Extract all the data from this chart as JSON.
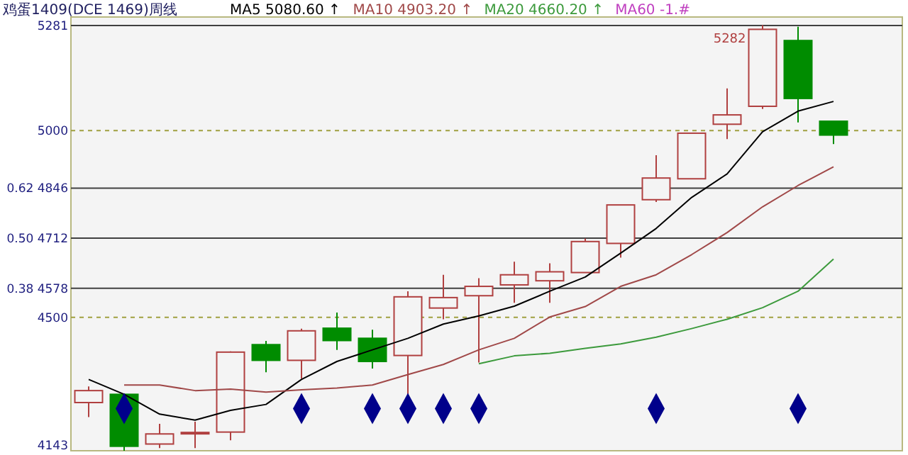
{
  "chart_data": {
    "type": "candlestick",
    "title": "鸡蛋1409(DCE 1469)周线",
    "categories": [
      null,
      null,
      null,
      null,
      null,
      null,
      null,
      null,
      null,
      null,
      null,
      null,
      null,
      null,
      null,
      null,
      null,
      null,
      null,
      null,
      null,
      null
    ],
    "ohlc": [
      [
        4272,
        4315,
        4233,
        4304
      ],
      [
        4294,
        4294,
        4143,
        4155
      ],
      [
        4161,
        4215,
        4150,
        4188
      ],
      [
        4189,
        4221,
        4150,
        4192
      ],
      [
        4193,
        4409,
        4171,
        4407
      ],
      [
        4427,
        4437,
        4353,
        4385
      ],
      [
        4385,
        4470,
        4336,
        4464
      ],
      [
        4471,
        4513,
        4413,
        4438
      ],
      [
        4444,
        4467,
        4363,
        4382
      ],
      [
        4398,
        4570,
        4294,
        4555
      ],
      [
        4525,
        4614,
        4495,
        4553
      ],
      [
        4558,
        4605,
        4379,
        4583
      ],
      [
        4587,
        4649,
        4539,
        4614
      ],
      [
        4598,
        4645,
        4539,
        4622
      ],
      [
        4620,
        4711,
        4620,
        4703
      ],
      [
        4698,
        4801,
        4660,
        4801
      ],
      [
        4815,
        4934,
        4809,
        4873
      ],
      [
        4871,
        4995,
        4871,
        4993
      ],
      [
        5017,
        5113,
        4977,
        5042
      ],
      [
        5065,
        5282,
        5058,
        5271
      ],
      [
        5241,
        5278,
        5022,
        5086
      ],
      [
        5025,
        5025,
        4964,
        4988
      ]
    ],
    "series": [
      {
        "name": "MA5 5080.60 ↑",
        "type": "line",
        "color": "#000000",
        "values": [
          4334,
          4294,
          4241,
          4225,
          4251,
          4267,
          4334,
          4382,
          4413,
          4444,
          4482,
          4504,
          4530,
          4570,
          4608,
          4672,
          4738,
          4821,
          4884,
          4997,
          5052,
          5078
        ]
      },
      {
        "name": "MA10 4903.20 ↑",
        "type": "line",
        "color": "#a04848",
        "values": [
          null,
          4319,
          4319,
          4304,
          4308,
          4300,
          4306,
          4311,
          4319,
          4347,
          4374,
          4413,
          4444,
          4501,
          4529,
          4583,
          4614,
          4668,
          4727,
          4796,
          4853,
          4903
        ]
      },
      {
        "name": "MA20 4660.20 ↑",
        "type": "line",
        "color": "#3c9a3c",
        "values": [
          null,
          null,
          null,
          null,
          null,
          null,
          null,
          null,
          null,
          null,
          null,
          4376,
          4397,
          4404,
          4417,
          4429,
          4447,
          4470,
          4495,
          4526,
          4570,
          4656
        ]
      },
      {
        "type": "scatter",
        "marker": "diamond",
        "color": "#00008b",
        "values": [
          null,
          4256,
          null,
          null,
          null,
          null,
          4256,
          null,
          4256,
          4256,
          4256,
          4256,
          null,
          null,
          null,
          null,
          4256,
          null,
          null,
          null,
          4256,
          null
        ]
      }
    ],
    "ylim": [
      4143,
      5304
    ],
    "yticks": [
      5281,
      5000,
      {
        "value": 4846,
        "label": "0.62 4846"
      },
      {
        "value": 4712,
        "label": "0.50 4712"
      },
      {
        "value": 4578,
        "label": "0.38 4578"
      },
      4500,
      4143
    ],
    "ref_lines": [
      {
        "axis": "y",
        "value": 5281,
        "color": "#404040"
      },
      {
        "axis": "y",
        "value": 4846,
        "color": "#404040"
      },
      {
        "axis": "y",
        "value": 4712,
        "color": "#404040"
      },
      {
        "axis": "y",
        "value": 4578,
        "color": "#404040"
      },
      {
        "axis": "y",
        "value": 5000,
        "color": "#a0a040",
        "line_style": "dashed"
      },
      {
        "axis": "y",
        "value": 4500,
        "color": "#a0a040",
        "line_style": "dashed"
      }
    ],
    "annotations": [
      {
        "text": "5282",
        "y": 5282
      },
      "MA60 -1.#"
    ],
    "legend": "top"
  }
}
